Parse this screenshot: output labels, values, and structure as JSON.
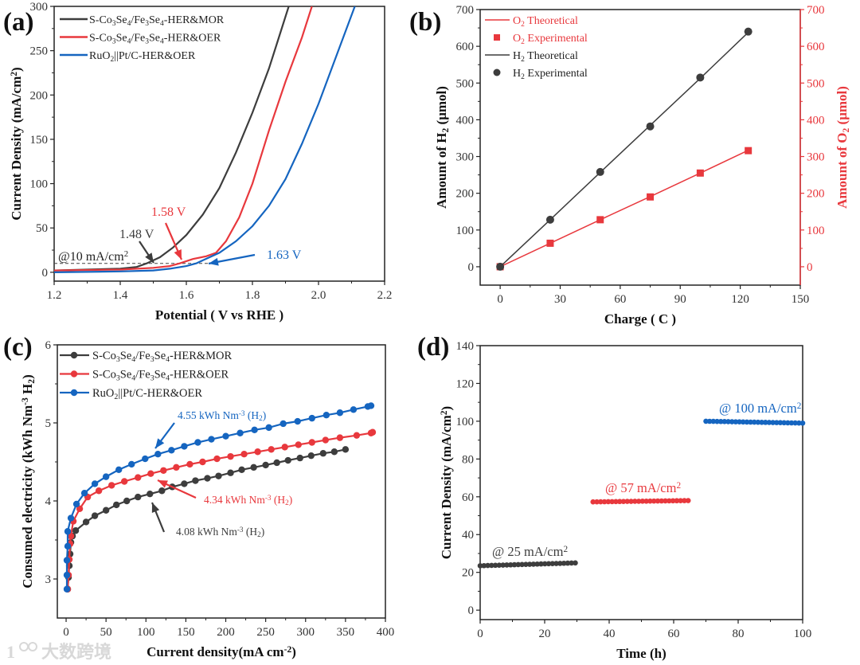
{
  "colors": {
    "black": "#3d3d3d",
    "red": "#e8383d",
    "blue": "#1565c0",
    "axis": "#222222"
  },
  "watermark": "大数跨境",
  "chart_data": [
    {
      "id": "a",
      "panel_label": "(a)",
      "type": "line",
      "xlabel": "Potential ( V vs RHE )",
      "ylabel": "Current Density (mA/cm^{2})",
      "xlim": [
        1.2,
        2.2
      ],
      "ylim": [
        -10,
        300
      ],
      "xticks": [
        1.2,
        1.4,
        1.6,
        1.8,
        2.0,
        2.2
      ],
      "xtick_labels": [
        "1.2",
        "1.4",
        "1.6",
        "1.8",
        "2.0",
        "2.2"
      ],
      "yticks": [
        0,
        50,
        100,
        150,
        200,
        250,
        300
      ],
      "ytick_labels": [
        "0",
        "50",
        "100",
        "150",
        "200",
        "250",
        "300"
      ],
      "legend_position": "top-left",
      "series": [
        {
          "name": "S-Co_{3}Se_{4}/Fe_{3}Se_{4}-HER&MOR",
          "color": "#3d3d3d",
          "x": [
            1.2,
            1.3,
            1.4,
            1.45,
            1.48,
            1.52,
            1.56,
            1.6,
            1.65,
            1.7,
            1.75,
            1.8,
            1.85,
            1.88,
            1.91
          ],
          "y": [
            2,
            3,
            4,
            6,
            10,
            17,
            28,
            42,
            65,
            95,
            135,
            180,
            230,
            265,
            300
          ]
        },
        {
          "name": "S-Co_{3}Se_{4}/Fe_{3}Se_{4}-HER&OER",
          "color": "#e8383d",
          "x": [
            1.2,
            1.4,
            1.5,
            1.55,
            1.58,
            1.62,
            1.66,
            1.69,
            1.72,
            1.76,
            1.8,
            1.85,
            1.9,
            1.95,
            1.98
          ],
          "y": [
            2,
            3,
            5,
            7,
            10,
            15,
            18,
            22,
            35,
            62,
            100,
            160,
            215,
            265,
            300
          ]
        },
        {
          "name": "RuO_{2}||Pt/C-HER&OER",
          "color": "#1565c0",
          "x": [
            1.2,
            1.4,
            1.5,
            1.55,
            1.6,
            1.63,
            1.7,
            1.75,
            1.8,
            1.85,
            1.9,
            1.95,
            2.0,
            2.05,
            2.11
          ],
          "y": [
            0,
            1,
            2,
            4,
            7,
            10,
            22,
            35,
            52,
            75,
            105,
            145,
            190,
            240,
            300
          ]
        }
      ],
      "reference_line": {
        "y": 10,
        "label": "@10 mA/cm^{2}"
      },
      "annotations": [
        {
          "text": "1.48 V",
          "color": "#3d3d3d",
          "x": 1.48,
          "y": 10
        },
        {
          "text": "1.58 V",
          "color": "#e8383d",
          "x": 1.58,
          "y": 10
        },
        {
          "text": "1.63 V",
          "color": "#1565c0",
          "x": 1.63,
          "y": 10
        }
      ]
    },
    {
      "id": "b",
      "panel_label": "(b)",
      "type": "line+scatter",
      "xlabel": "Charge ( C )",
      "ylabel": "Amount of H_{2} (μmol)",
      "ylabel_right": "Amount of O_{2} (μmol)",
      "xlim": [
        -10,
        150
      ],
      "ylim": [
        -50,
        700
      ],
      "ylim_right": [
        -50,
        700
      ],
      "xticks": [
        0,
        30,
        60,
        90,
        120,
        150
      ],
      "xtick_labels": [
        "0",
        "30",
        "60",
        "90",
        "120",
        "150"
      ],
      "yticks": [
        0,
        100,
        200,
        300,
        400,
        500,
        600,
        700
      ],
      "ytick_labels": [
        "0",
        "100",
        "200",
        "300",
        "400",
        "500",
        "600",
        "700"
      ],
      "legend_position": "top-left",
      "series": [
        {
          "name": "O_{2} Theoretical",
          "kind": "line",
          "color": "#e8383d",
          "x": [
            0,
            25,
            50,
            75,
            100,
            124
          ],
          "y": [
            0,
            64,
            128,
            191,
            255,
            317
          ]
        },
        {
          "name": "O_{2} Experimental",
          "kind": "square",
          "color": "#e8383d",
          "x": [
            0,
            25,
            50,
            75,
            100,
            124
          ],
          "y": [
            0,
            64,
            128,
            190,
            255,
            316
          ]
        },
        {
          "name": "H_{2} Theoretical",
          "kind": "line",
          "color": "#3d3d3d",
          "x": [
            0,
            25,
            50,
            75,
            100,
            124
          ],
          "y": [
            0,
            128,
            257,
            385,
            513,
            638
          ]
        },
        {
          "name": "H_{2} Experimental",
          "kind": "circle",
          "color": "#3d3d3d",
          "x": [
            0,
            25,
            50,
            75,
            100,
            124
          ],
          "y": [
            0,
            128,
            258,
            382,
            515,
            640
          ]
        }
      ]
    },
    {
      "id": "c",
      "panel_label": "(c)",
      "type": "line+scatter",
      "xlabel": "Current density(mA cm^{-2})",
      "ylabel": "Consumed electricity  (kWh Nm^{-3} H_{2})",
      "xlim": [
        -11,
        400
      ],
      "ylim": [
        2.5,
        6
      ],
      "xticks": [
        0,
        50,
        100,
        150,
        200,
        250,
        300,
        350,
        400
      ],
      "xtick_labels": [
        "0",
        "50",
        "100",
        "150",
        "200",
        "250",
        "300",
        "350",
        "400"
      ],
      "yticks": [
        3,
        4,
        5,
        6
      ],
      "ytick_labels": [
        "3",
        "4",
        "5",
        "6"
      ],
      "legend_position": "top-left",
      "series": [
        {
          "name": "S-Co_{3}Se_{4}/Fe_{3}Se_{4}-HER&MOR",
          "color": "#3d3d3d",
          "x": [
            2,
            3,
            4,
            5,
            6,
            8,
            12,
            25,
            36,
            50,
            63,
            76,
            90,
            105,
            120,
            133,
            148,
            162,
            177,
            191,
            206,
            220,
            235,
            250,
            264,
            278,
            293,
            307,
            322,
            336,
            350
          ],
          "y": [
            2.87,
            3.02,
            3.17,
            3.32,
            3.47,
            3.55,
            3.62,
            3.73,
            3.81,
            3.88,
            3.95,
            4.0,
            4.05,
            4.09,
            4.13,
            4.18,
            4.22,
            4.26,
            4.29,
            4.32,
            4.36,
            4.4,
            4.43,
            4.46,
            4.49,
            4.52,
            4.55,
            4.58,
            4.61,
            4.63,
            4.66
          ]
        },
        {
          "name": "S-Co_{3}Se_{4}/Fe_{3}Se_{4}-HER&OER",
          "color": "#e8383d",
          "x": [
            2,
            3,
            4,
            5,
            6,
            9,
            17,
            27,
            41,
            57,
            73,
            90,
            106,
            122,
            138,
            155,
            171,
            189,
            206,
            223,
            240,
            257,
            274,
            291,
            308,
            325,
            343,
            364,
            382,
            384
          ],
          "y": [
            2.87,
            3.05,
            3.25,
            3.45,
            3.55,
            3.74,
            3.9,
            4.05,
            4.13,
            4.2,
            4.25,
            4.3,
            4.35,
            4.39,
            4.43,
            4.47,
            4.5,
            4.54,
            4.57,
            4.6,
            4.63,
            4.66,
            4.69,
            4.72,
            4.75,
            4.78,
            4.81,
            4.84,
            4.87,
            4.88
          ]
        },
        {
          "name": "RuO_{2}||Pt/C-HER&OER",
          "color": "#1565c0",
          "x": [
            1,
            1,
            1,
            2,
            2,
            6,
            13,
            23,
            36,
            50,
            66,
            82,
            99,
            115,
            132,
            148,
            165,
            182,
            200,
            218,
            236,
            254,
            272,
            290,
            308,
            326,
            343,
            360,
            378,
            382
          ],
          "y": [
            2.87,
            3.05,
            3.24,
            3.42,
            3.61,
            3.78,
            3.96,
            4.1,
            4.22,
            4.31,
            4.4,
            4.47,
            4.54,
            4.6,
            4.65,
            4.7,
            4.75,
            4.79,
            4.83,
            4.87,
            4.91,
            4.94,
            4.99,
            5.02,
            5.06,
            5.1,
            5.13,
            5.17,
            5.21,
            5.22
          ]
        }
      ],
      "annotations": [
        {
          "text": "4.55 kWh Nm^{-3} (H_{2})",
          "color": "#1565c0",
          "x": 105,
          "y": 4.56
        },
        {
          "text": "4.34 kWh Nm^{-3} (H_{2})",
          "color": "#e8383d",
          "x": 110,
          "y": 4.34
        },
        {
          "text": "4.08 kWh Nm^{-3} (H_{2})",
          "color": "#3d3d3d",
          "x": 107,
          "y": 4.08
        }
      ]
    },
    {
      "id": "d",
      "panel_label": "(d)",
      "type": "scatter",
      "xlabel": "Time (h)",
      "ylabel": "Current Density (mA/cm^{2})",
      "xlim": [
        0,
        100
      ],
      "ylim": [
        -5,
        140
      ],
      "xticks": [
        0,
        20,
        40,
        60,
        80,
        100
      ],
      "xtick_labels": [
        "0",
        "20",
        "40",
        "60",
        "80",
        "100"
      ],
      "yticks": [
        0,
        20,
        40,
        60,
        80,
        100,
        120,
        140
      ],
      "ytick_labels": [
        "0",
        "20",
        "40",
        "60",
        "80",
        "100",
        "120",
        "140"
      ],
      "series": [
        {
          "name": "@ 25 mA/cm^{2}",
          "color": "#3d3d3d",
          "x_range": [
            0,
            29.5
          ],
          "y_start": 23.5,
          "y_end": 25.0,
          "points": 26
        },
        {
          "name": "@ 57 mA/cm^{2}",
          "color": "#e8383d",
          "x_range": [
            35,
            64.5
          ],
          "y_start": 57.3,
          "y_end": 58.0,
          "points": 26
        },
        {
          "name": "@ 100 mA/cm^{2}",
          "color": "#1565c0",
          "x_range": [
            70,
            100
          ],
          "y_start": 100.0,
          "y_end": 99.0,
          "points": 27
        }
      ]
    }
  ]
}
